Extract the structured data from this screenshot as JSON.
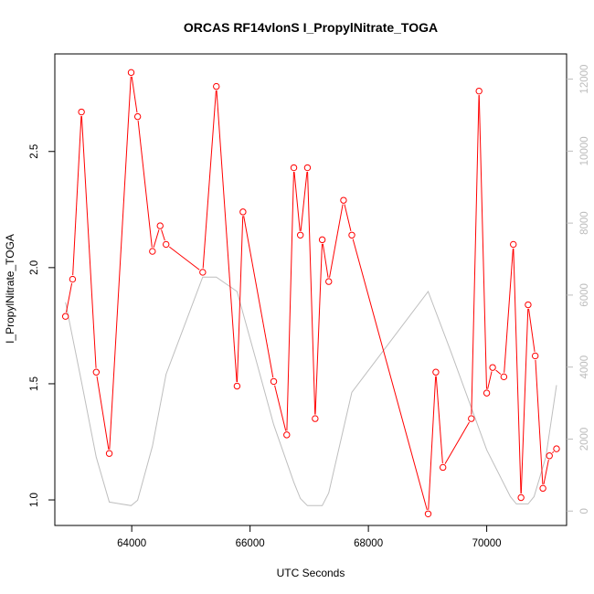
{
  "chart_data": {
    "type": "line",
    "title": "ORCAS RF14vlonS I_PropylNitrate_TOGA",
    "xlabel": "UTC Seconds",
    "ylabel": "I_PropylNitrate_TOGA",
    "xlim": [
      62700,
      71350
    ],
    "ylim": [
      0.89,
      2.92
    ],
    "y2lim": [
      -400,
      12700
    ],
    "x_ticks": [
      64000,
      66000,
      68000,
      70000
    ],
    "x_tick_labels": [
      "64000",
      "66000",
      "68000",
      "70000"
    ],
    "y_ticks": [
      1.0,
      1.5,
      2.0,
      2.5
    ],
    "y_tick_labels": [
      "1.0",
      "1.5",
      "2.0",
      "2.5"
    ],
    "y2_ticks": [
      0,
      2000,
      4000,
      6000,
      8000,
      10000,
      12000
    ],
    "y2_tick_labels": [
      "0",
      "2000",
      "4000",
      "6000",
      "8000",
      "10000",
      "12000"
    ],
    "grid": false,
    "colors": {
      "main": "#ff0000",
      "secondary": "#bebebe",
      "axis": "#000000",
      "right_axis": "#bdbdbd"
    },
    "series": [
      {
        "axis": "left",
        "style": "line+points",
        "x": [
          62880,
          63000,
          63150,
          63400,
          63620,
          63990,
          64100,
          64350,
          64480,
          64580,
          65200,
          65430,
          65780,
          65880,
          66400,
          66620,
          66740,
          66850,
          66970,
          67100,
          67220,
          67330,
          67580,
          67720,
          69010,
          69140,
          69260,
          69740,
          69870,
          70000,
          70100,
          70290,
          70450,
          70580,
          70700,
          70820,
          70950,
          71060,
          71180
        ],
        "y": [
          1.79,
          1.95,
          2.67,
          1.55,
          1.2,
          2.84,
          2.65,
          2.07,
          2.18,
          2.1,
          1.98,
          2.78,
          1.49,
          2.24,
          1.51,
          1.28,
          2.43,
          2.14,
          2.43,
          1.35,
          2.12,
          1.94,
          2.29,
          2.14,
          0.94,
          1.55,
          1.14,
          1.35,
          2.76,
          1.46,
          1.57,
          1.53,
          2.1,
          1.01,
          1.84,
          1.62,
          1.05,
          1.19,
          1.22
        ]
      },
      {
        "axis": "right",
        "style": "line",
        "x": [
          62880,
          63150,
          63400,
          63620,
          63990,
          64100,
          64350,
          64580,
          65200,
          65430,
          65780,
          66100,
          66400,
          66740,
          66850,
          66970,
          67100,
          67220,
          67330,
          67720,
          69010,
          69400,
          70000,
          70400,
          70500,
          70700,
          70800,
          71000,
          71180
        ],
        "y": [
          5800,
          3600,
          1500,
          250,
          150,
          300,
          1800,
          3800,
          6500,
          6500,
          6100,
          4200,
          2400,
          800,
          350,
          150,
          150,
          150,
          500,
          3300,
          6100,
          4400,
          1700,
          400,
          200,
          200,
          400,
          1500,
          3500
        ]
      }
    ]
  }
}
